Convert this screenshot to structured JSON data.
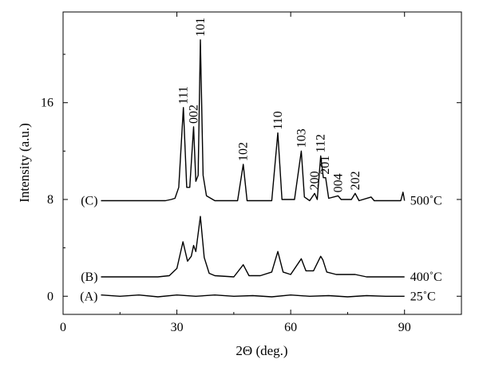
{
  "chart_data": {
    "type": "line",
    "title": "",
    "xlabel": "2Θ (deg.)",
    "ylabel": "Intensity (a.u.)",
    "xlim": [
      0,
      105
    ],
    "ylim": [
      -1.5,
      23.5
    ],
    "x_ticks": [
      0,
      30,
      60,
      90
    ],
    "x_tick_labels": [
      "0",
      "30",
      "60",
      "90"
    ],
    "y_ticks": [
      0,
      8,
      16
    ],
    "y_tick_labels": [
      "0",
      "8",
      "16"
    ],
    "grid": false,
    "legend": "none",
    "line_color": "#000000",
    "series": [
      {
        "name": "25˚C",
        "tag": "(A)",
        "baseline": 0.0,
        "points": [
          [
            10,
            0.1
          ],
          [
            15,
            0.0
          ],
          [
            20,
            0.1
          ],
          [
            25,
            -0.05
          ],
          [
            30,
            0.1
          ],
          [
            35,
            0.0
          ],
          [
            40,
            0.1
          ],
          [
            45,
            0.0
          ],
          [
            50,
            0.05
          ],
          [
            55,
            -0.05
          ],
          [
            60,
            0.1
          ],
          [
            65,
            0.0
          ],
          [
            70,
            0.05
          ],
          [
            75,
            -0.05
          ],
          [
            80,
            0.05
          ],
          [
            85,
            0.0
          ],
          [
            90,
            0.0
          ]
        ]
      },
      {
        "name": "400˚C",
        "tag": "(B)",
        "baseline": 1.6,
        "points": [
          [
            10,
            1.6
          ],
          [
            15,
            1.6
          ],
          [
            20,
            1.6
          ],
          [
            25,
            1.6
          ],
          [
            28,
            1.7
          ],
          [
            30,
            2.3
          ],
          [
            31.6,
            4.5
          ],
          [
            32.8,
            2.9
          ],
          [
            33.8,
            3.3
          ],
          [
            34.4,
            4.2
          ],
          [
            35.0,
            3.7
          ],
          [
            36.2,
            6.6
          ],
          [
            37.2,
            3.2
          ],
          [
            38.5,
            1.9
          ],
          [
            40,
            1.7
          ],
          [
            45,
            1.6
          ],
          [
            47.5,
            2.6
          ],
          [
            49,
            1.7
          ],
          [
            52,
            1.7
          ],
          [
            55,
            2.0
          ],
          [
            56.6,
            3.7
          ],
          [
            58,
            2.0
          ],
          [
            60,
            1.8
          ],
          [
            62.8,
            3.1
          ],
          [
            64,
            2.1
          ],
          [
            66,
            2.1
          ],
          [
            67.9,
            3.3
          ],
          [
            68.5,
            3.0
          ],
          [
            69.5,
            2.0
          ],
          [
            72,
            1.8
          ],
          [
            77,
            1.8
          ],
          [
            80,
            1.6
          ],
          [
            90,
            1.6
          ]
        ]
      },
      {
        "name": "500˚C",
        "tag": "(C)",
        "baseline": 7.9,
        "points": [
          [
            10,
            7.9
          ],
          [
            20,
            7.9
          ],
          [
            27,
            7.9
          ],
          [
            28.5,
            8.0
          ],
          [
            29.5,
            8.1
          ],
          [
            30.5,
            9.0
          ],
          [
            31.7,
            15.6
          ],
          [
            32.6,
            9.0
          ],
          [
            33.4,
            9.0
          ],
          [
            34.4,
            14.0
          ],
          [
            35.0,
            9.5
          ],
          [
            35.6,
            10.0
          ],
          [
            36.2,
            21.2
          ],
          [
            36.9,
            10.0
          ],
          [
            37.8,
            8.3
          ],
          [
            40,
            7.9
          ],
          [
            46,
            7.9
          ],
          [
            47.5,
            10.9
          ],
          [
            48.5,
            7.9
          ],
          [
            55,
            7.9
          ],
          [
            56.6,
            13.5
          ],
          [
            57.7,
            8.0
          ],
          [
            61,
            8.0
          ],
          [
            62.8,
            12.0
          ],
          [
            63.6,
            8.2
          ],
          [
            65,
            7.9
          ],
          [
            66.3,
            8.5
          ],
          [
            67,
            8.0
          ],
          [
            67.9,
            11.6
          ],
          [
            68.6,
            9.8
          ],
          [
            69.2,
            9.8
          ],
          [
            70,
            8.1
          ],
          [
            72.5,
            8.3
          ],
          [
            73.3,
            8.0
          ],
          [
            76,
            8.0
          ],
          [
            77,
            8.5
          ],
          [
            78,
            7.9
          ],
          [
            81.2,
            8.2
          ],
          [
            82,
            7.9
          ],
          [
            89,
            7.9
          ],
          [
            89.6,
            8.6
          ],
          [
            90,
            7.9
          ]
        ]
      }
    ],
    "peak_labels": [
      {
        "text": "111",
        "x": 31.7,
        "y": 15.6
      },
      {
        "text": "002",
        "x": 34.4,
        "y": 14.0
      },
      {
        "text": "101",
        "x": 36.2,
        "y": 21.2
      },
      {
        "text": "102",
        "x": 47.5,
        "y": 10.9
      },
      {
        "text": "110",
        "x": 56.6,
        "y": 13.5
      },
      {
        "text": "103",
        "x": 62.8,
        "y": 12.0
      },
      {
        "text": "200",
        "x": 66.3,
        "y": 8.5
      },
      {
        "text": "112",
        "x": 67.9,
        "y": 11.6
      },
      {
        "text": "201",
        "x": 69.0,
        "y": 9.8
      },
      {
        "text": "004",
        "x": 72.5,
        "y": 8.3
      },
      {
        "text": "202",
        "x": 77.0,
        "y": 8.5
      }
    ]
  }
}
